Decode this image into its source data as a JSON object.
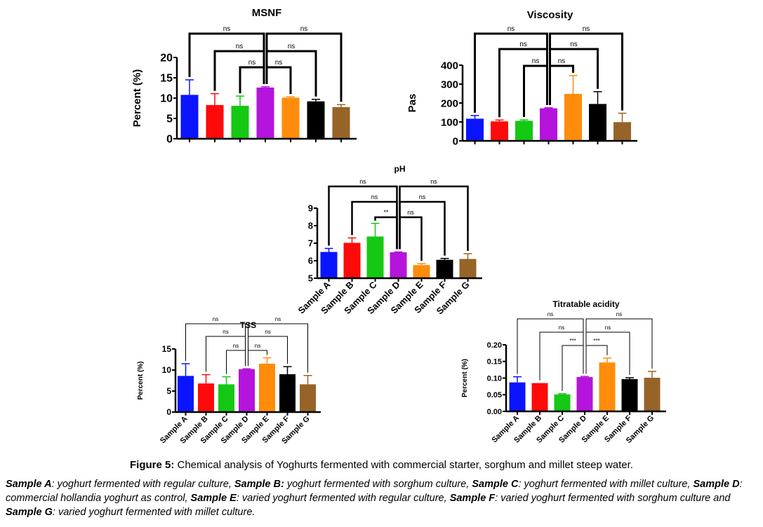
{
  "chart_data": [
    {
      "id": "msnf",
      "type": "bar",
      "title": "MSNF",
      "xlabel": "",
      "ylabel": "Percent (%)",
      "ylim": [
        0,
        20
      ],
      "yticks": [
        "0",
        "5",
        "10",
        "15",
        "20"
      ],
      "yticks_values": [
        0,
        5,
        10,
        15,
        20
      ],
      "show_xlabels": false,
      "categories": [
        "Sample A",
        "Sample B",
        "Sample C",
        "Sample D",
        "Sample E",
        "Sample F",
        "Sample G"
      ],
      "values": [
        10.8,
        8.3,
        8.1,
        12.6,
        10.1,
        9.2,
        7.8
      ],
      "errors": [
        3.7,
        2.8,
        2.4,
        0.2,
        0.2,
        0.5,
        0.6
      ],
      "significance": [
        {
          "from": "Sample A",
          "to": "Sample D",
          "label": "ns"
        },
        {
          "from": "Sample B",
          "to": "Sample D",
          "label": "ns"
        },
        {
          "from": "Sample C",
          "to": "Sample D",
          "label": "ns"
        },
        {
          "from": "Sample D",
          "to": "Sample E",
          "label": "ns"
        },
        {
          "from": "Sample D",
          "to": "Sample F",
          "label": "ns"
        },
        {
          "from": "Sample D",
          "to": "Sample G",
          "label": "ns"
        }
      ]
    },
    {
      "id": "viscosity",
      "type": "bar",
      "title": "Viscosity",
      "xlabel": "",
      "ylabel": "Pas",
      "ylim": [
        0,
        400
      ],
      "yticks": [
        "0",
        "100",
        "200",
        "300",
        "400"
      ],
      "yticks_values": [
        0,
        100,
        200,
        300,
        400
      ],
      "show_xlabels": false,
      "categories": [
        "Sample A",
        "Sample B",
        "Sample C",
        "Sample D",
        "Sample E",
        "Sample F",
        "Sample G"
      ],
      "values": [
        117,
        103,
        106,
        172,
        248,
        195,
        99
      ],
      "errors": [
        17,
        7,
        5,
        3,
        97,
        65,
        47
      ],
      "significance": [
        {
          "from": "Sample A",
          "to": "Sample D",
          "label": "ns"
        },
        {
          "from": "Sample B",
          "to": "Sample D",
          "label": "ns"
        },
        {
          "from": "Sample C",
          "to": "Sample D",
          "label": "ns"
        },
        {
          "from": "Sample D",
          "to": "Sample E",
          "label": "ns"
        },
        {
          "from": "Sample D",
          "to": "Sample F",
          "label": "ns"
        },
        {
          "from": "Sample D",
          "to": "Sample G",
          "label": "ns"
        }
      ]
    },
    {
      "id": "ph",
      "type": "bar",
      "title": "pH",
      "xlabel": "",
      "ylabel": "",
      "ylim": [
        5,
        9
      ],
      "yticks": [
        "5",
        "6",
        "7",
        "8",
        "9"
      ],
      "yticks_values": [
        5,
        6,
        7,
        8,
        9
      ],
      "show_xlabels": true,
      "categories": [
        "Sample A",
        "Sample B",
        "Sample C",
        "Sample D",
        "Sample E",
        "Sample F",
        "Sample G"
      ],
      "values": [
        6.5,
        7.02,
        7.38,
        6.48,
        5.75,
        6.05,
        6.1
      ],
      "errors": [
        0.2,
        0.28,
        0.75,
        0.02,
        0.08,
        0.08,
        0.3
      ],
      "significance": [
        {
          "from": "Sample A",
          "to": "Sample D",
          "label": "ns"
        },
        {
          "from": "Sample B",
          "to": "Sample D",
          "label": "ns"
        },
        {
          "from": "Sample C",
          "to": "Sample D",
          "label": "**"
        },
        {
          "from": "Sample D",
          "to": "Sample E",
          "label": "ns"
        },
        {
          "from": "Sample D",
          "to": "Sample F",
          "label": "ns"
        },
        {
          "from": "Sample D",
          "to": "Sample G",
          "label": "ns"
        }
      ]
    },
    {
      "id": "tss",
      "type": "bar",
      "title": "TSS",
      "xlabel": "",
      "ylabel": "Percent (%)",
      "ylim": [
        0,
        15
      ],
      "yticks": [
        "0",
        "5",
        "10",
        "15"
      ],
      "yticks_values": [
        0,
        5,
        10,
        15
      ],
      "show_xlabels": true,
      "categories": [
        "Sample A",
        "Sample B",
        "Sample C",
        "Sample D",
        "Sample E",
        "Sample F",
        "Sample G"
      ],
      "values": [
        8.6,
        6.8,
        6.6,
        10.2,
        11.5,
        9.0,
        6.6
      ],
      "errors": [
        2.9,
        2.1,
        1.8,
        0.1,
        1.4,
        1.8,
        2.1
      ],
      "significance": [
        {
          "from": "Sample A",
          "to": "Sample D",
          "label": "ns"
        },
        {
          "from": "Sample B",
          "to": "Sample D",
          "label": "ns"
        },
        {
          "from": "Sample C",
          "to": "Sample D",
          "label": "ns"
        },
        {
          "from": "Sample D",
          "to": "Sample E",
          "label": "ns"
        },
        {
          "from": "Sample D",
          "to": "Sample F",
          "label": "ns"
        },
        {
          "from": "Sample D",
          "to": "Sample G",
          "label": "ns"
        }
      ]
    },
    {
      "id": "titratable-acidity",
      "type": "bar",
      "title": "Titratable acidity",
      "xlabel": "",
      "ylabel": "Percent (%)",
      "ylim": [
        0,
        0.2
      ],
      "yticks": [
        "0.00",
        "0.05",
        "0.10",
        "0.15",
        "0.20"
      ],
      "yticks_values": [
        0,
        0.05,
        0.1,
        0.15,
        0.2
      ],
      "show_xlabels": true,
      "categories": [
        "Sample A",
        "Sample B",
        "Sample C",
        "Sample D",
        "Sample E",
        "Sample F",
        "Sample G"
      ],
      "values": [
        0.087,
        0.085,
        0.051,
        0.103,
        0.147,
        0.097,
        0.101
      ],
      "errors": [
        0.017,
        0.0,
        0.002,
        0.002,
        0.013,
        0.004,
        0.019
      ],
      "significance": [
        {
          "from": "Sample A",
          "to": "Sample D",
          "label": "ns"
        },
        {
          "from": "Sample B",
          "to": "Sample D",
          "label": "ns"
        },
        {
          "from": "Sample C",
          "to": "Sample D",
          "label": "***"
        },
        {
          "from": "Sample D",
          "to": "Sample E",
          "label": "***"
        },
        {
          "from": "Sample D",
          "to": "Sample F",
          "label": "ns"
        },
        {
          "from": "Sample D",
          "to": "Sample G",
          "label": "ns"
        }
      ]
    }
  ],
  "colors": [
    "#0a14ff",
    "#ff0a0a",
    "#14c814",
    "#b414dc",
    "#ff8c0a",
    "#000000",
    "#966428"
  ],
  "caption": {
    "label": "Figure 5:",
    "text": " Chemical analysis of Yoghurts fermented with commercial starter, sorghum and millet steep water."
  },
  "legend": [
    {
      "sample": "Sample A",
      "sep": ":",
      "desc": " yoghurt fermented with regular culture, "
    },
    {
      "sample": "Sample B:",
      "sep": "",
      "desc": " yoghurt fermented with sorghum culture, "
    },
    {
      "sample": "Sample C",
      "sep": ":",
      "desc": " yoghurt fermented with millet culture, "
    },
    {
      "sample": "Sample D",
      "sep": ":",
      "desc": " commercial hollandia yoghurt as control, "
    },
    {
      "sample": "Sample E",
      "sep": ":",
      "desc": " varied yoghurt fermented with regular culture, "
    },
    {
      "sample": "Sample F",
      "sep": ":",
      "desc": " varied yoghurt fermented with sorghum culture and "
    },
    {
      "sample": "Sample G",
      "sep": ":",
      "desc": " varied yoghurt fermented with millet culture."
    }
  ]
}
